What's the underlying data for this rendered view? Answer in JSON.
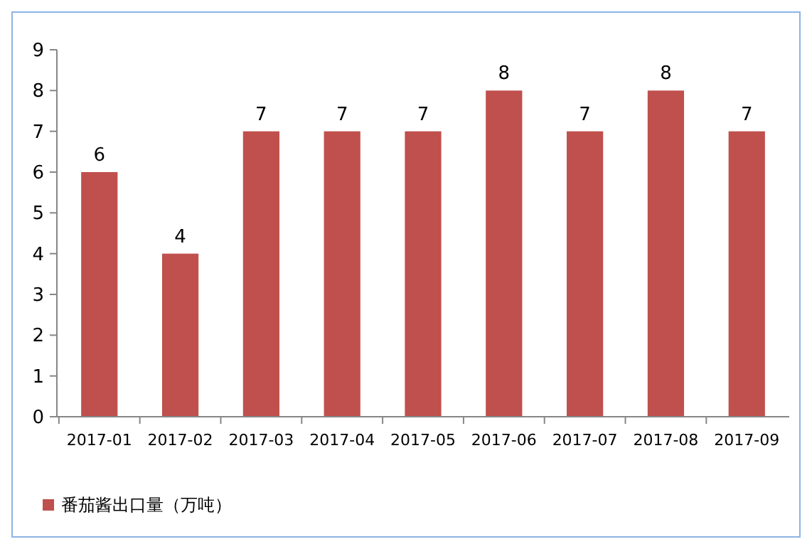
{
  "chart_data": {
    "type": "bar",
    "categories": [
      "2017-01",
      "2017-02",
      "2017-03",
      "2017-04",
      "2017-05",
      "2017-06",
      "2017-07",
      "2017-08",
      "2017-09"
    ],
    "series": [
      {
        "name": "番茄酱出口量（万吨）",
        "color": "#c0504d",
        "values": [
          6,
          4,
          7,
          7,
          7,
          8,
          7,
          8,
          7
        ]
      }
    ],
    "ylim": [
      0,
      9
    ],
    "yticks": [
      0,
      1,
      2,
      3,
      4,
      5,
      6,
      7,
      8,
      9
    ],
    "grid": false,
    "data_labels": true,
    "legend": "bottom left"
  }
}
